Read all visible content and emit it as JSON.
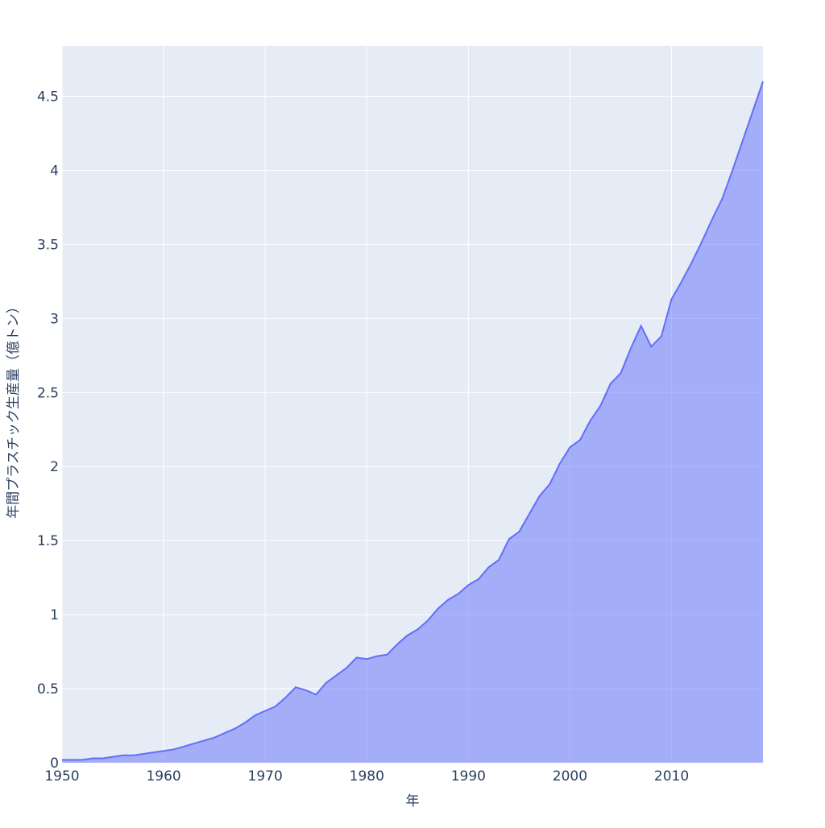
{
  "chart_data": {
    "type": "area",
    "x_label": "年",
    "y_label": "年間プラスチック生産量（億トン）",
    "x": [
      1950,
      1951,
      1952,
      1953,
      1954,
      1955,
      1956,
      1957,
      1958,
      1959,
      1960,
      1961,
      1962,
      1963,
      1964,
      1965,
      1966,
      1967,
      1968,
      1969,
      1970,
      1971,
      1972,
      1973,
      1974,
      1975,
      1976,
      1977,
      1978,
      1979,
      1980,
      1981,
      1982,
      1983,
      1984,
      1985,
      1986,
      1987,
      1988,
      1989,
      1990,
      1991,
      1992,
      1993,
      1994,
      1995,
      1996,
      1997,
      1998,
      1999,
      2000,
      2001,
      2002,
      2003,
      2004,
      2005,
      2006,
      2007,
      2008,
      2009,
      2010,
      2011,
      2012,
      2013,
      2014,
      2015,
      2016,
      2017,
      2018,
      2019
    ],
    "series": [
      {
        "color": "#636efa",
        "values": [
          0.02,
          0.02,
          0.02,
          0.03,
          0.03,
          0.04,
          0.05,
          0.05,
          0.06,
          0.07,
          0.08,
          0.09,
          0.11,
          0.13,
          0.15,
          0.17,
          0.2,
          0.23,
          0.27,
          0.32,
          0.35,
          0.38,
          0.44,
          0.51,
          0.49,
          0.46,
          0.54,
          0.59,
          0.64,
          0.71,
          0.7,
          0.72,
          0.73,
          0.8,
          0.86,
          0.9,
          0.96,
          1.04,
          1.1,
          1.14,
          1.2,
          1.24,
          1.32,
          1.37,
          1.51,
          1.56,
          1.68,
          1.8,
          1.88,
          2.02,
          2.13,
          2.18,
          2.31,
          2.41,
          2.56,
          2.63,
          2.8,
          2.95,
          2.81,
          2.88,
          3.13,
          3.25,
          3.38,
          3.52,
          3.67,
          3.81,
          4.0,
          4.2,
          4.4,
          4.6
        ]
      }
    ],
    "xlim": [
      1950,
      2019
    ],
    "xticks": [
      1950,
      1960,
      1970,
      1980,
      1990,
      2000,
      2010
    ],
    "ylim": [
      0,
      4.84
    ],
    "yticks": [
      0,
      0.5,
      1,
      1.5,
      2,
      2.5,
      3,
      3.5,
      4,
      4.5
    ],
    "grid": true
  }
}
